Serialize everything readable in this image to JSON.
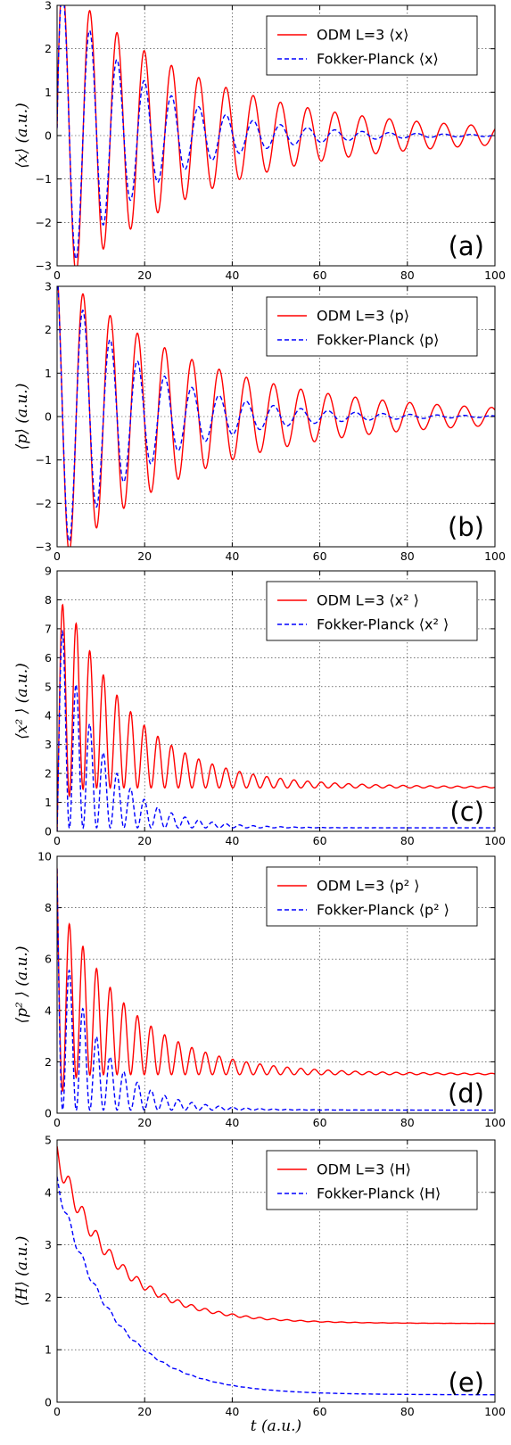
{
  "colors": {
    "odm": "#ff0000",
    "fp": "#0000ff"
  },
  "xlabel": "t  (a.u.)",
  "chart_data": [
    {
      "type": "line",
      "panel": "(a)",
      "ylabel": "⟨x⟩ (a.u.)",
      "xlim": [
        0,
        100
      ],
      "ylim": [
        -3,
        3
      ],
      "xticks": [
        "0",
        "20",
        "40",
        "60",
        "80",
        "100"
      ],
      "yticks": [
        "−3",
        "−2",
        "−1",
        "0",
        "1",
        "2",
        "3"
      ],
      "legend_loc": "top-right",
      "series": [
        {
          "name": "ODM L=3 ⟨x⟩",
          "style": "solid",
          "color": "#ff0000",
          "model": {
            "kind": "osc",
            "start": 0,
            "amplitude": 3.0,
            "decay": 0.032,
            "amp_floor": 0.06,
            "omega": 1.01,
            "phase": 0.3,
            "offset": 0
          }
        },
        {
          "name": "Fokker-Planck ⟨x⟩",
          "style": "dashed",
          "color": "#0000ff",
          "model": {
            "kind": "osc",
            "start": 0,
            "amplitude": 3.0,
            "decay": 0.052,
            "amp_floor": 0,
            "omega": 1.01,
            "phase": 0.3,
            "offset": 0
          }
        }
      ]
    },
    {
      "type": "line",
      "panel": "(b)",
      "ylabel": "⟨p⟩ (a.u.)",
      "xlim": [
        0,
        100
      ],
      "ylim": [
        -3,
        3
      ],
      "xticks": [
        "0",
        "20",
        "40",
        "60",
        "80",
        "100"
      ],
      "yticks": [
        "−3",
        "−2",
        "−1",
        "0",
        "1",
        "2",
        "3"
      ],
      "legend_loc": "top-right",
      "series": [
        {
          "name": "ODM L=3 ⟨p⟩",
          "style": "solid",
          "color": "#ff0000",
          "model": {
            "kind": "osc",
            "start": 3.0,
            "amplitude": 2.8,
            "decay": 0.032,
            "amp_floor": 0.06,
            "omega": 1.01,
            "phase": 1.87,
            "offset": 0
          }
        },
        {
          "name": "Fokker-Planck ⟨p⟩",
          "style": "dashed",
          "color": "#0000ff",
          "model": {
            "kind": "osc",
            "start": 3.0,
            "amplitude": 2.8,
            "decay": 0.052,
            "amp_floor": 0,
            "omega": 1.01,
            "phase": 1.87,
            "offset": 0
          }
        }
      ]
    },
    {
      "type": "line",
      "panel": "(c)",
      "ylabel": "⟨x² ⟩ (a.u.)",
      "xlim": [
        0,
        100
      ],
      "ylim": [
        0,
        9
      ],
      "xticks": [
        "0",
        "20",
        "40",
        "60",
        "80",
        "100"
      ],
      "yticks": [
        "0",
        "1",
        "2",
        "3",
        "4",
        "5",
        "6",
        "7",
        "8",
        "9"
      ],
      "legend_loc": "top-right",
      "series": [
        {
          "name": "ODM L=3 ⟨x² ⟩",
          "style": "solid",
          "color": "#ff0000",
          "model": {
            "kind": "sq",
            "start": 0,
            "amplitude": 7.6,
            "decay": 0.064,
            "amp_floor": 0.04,
            "omega": 1.01,
            "phase": 0.3,
            "offset": 1.5,
            "offset_rise": 0.2
          }
        },
        {
          "name": "Fokker-Planck ⟨x² ⟩",
          "style": "dashed",
          "color": "#0000ff",
          "model": {
            "kind": "sq",
            "start": 0,
            "amplitude": 7.8,
            "decay": 0.104,
            "amp_floor": 0,
            "omega": 1.01,
            "phase": 0.3,
            "offset": 0.12,
            "offset_rise": 0.2
          }
        }
      ]
    },
    {
      "type": "line",
      "panel": "(d)",
      "ylabel": "⟨p² ⟩ (a.u.)",
      "xlim": [
        0,
        100
      ],
      "ylim": [
        0,
        10
      ],
      "xticks": [
        "0",
        "20",
        "40",
        "60",
        "80",
        "100"
      ],
      "yticks": [
        "0",
        "2",
        "4",
        "6",
        "8",
        "10"
      ],
      "legend_loc": "top-right",
      "series": [
        {
          "name": "ODM L=3 ⟨p² ⟩",
          "style": "solid",
          "color": "#ff0000",
          "model": {
            "kind": "sq",
            "start": 9.5,
            "amplitude": 7.3,
            "decay": 0.064,
            "amp_floor": 0.04,
            "omega": 1.01,
            "phase": 1.87,
            "offset": 1.5,
            "offset_rise": 0.2
          }
        },
        {
          "name": "Fokker-Planck ⟨p² ⟩",
          "style": "dashed",
          "color": "#0000ff",
          "model": {
            "kind": "sq",
            "start": 9.5,
            "amplitude": 7.3,
            "decay": 0.104,
            "amp_floor": 0,
            "omega": 1.01,
            "phase": 1.87,
            "offset": 0.12,
            "offset_rise": 0.2
          }
        }
      ]
    },
    {
      "type": "line",
      "panel": "(e)",
      "ylabel": "⟨H⟩ (a.u.)",
      "xlim": [
        0,
        100
      ],
      "ylim": [
        0,
        5
      ],
      "xticks": [
        "0",
        "20",
        "40",
        "60",
        "80",
        "100"
      ],
      "yticks": [
        "0",
        "1",
        "2",
        "3",
        "4",
        "5"
      ],
      "legend_loc": "top-right",
      "series": [
        {
          "name": "ODM L=3 ⟨H⟩",
          "style": "solid",
          "color": "#ff0000",
          "model": {
            "kind": "energy",
            "start": 4.7,
            "offset": 1.5,
            "decay": 0.075,
            "ripple": 0.22,
            "ripple_decay": 0.055,
            "omega": 2.02,
            "phase": 0.6
          }
        },
        {
          "name": "Fokker-Planck ⟨H⟩",
          "style": "dashed",
          "color": "#0000ff",
          "model": {
            "kind": "energy",
            "start": 4.2,
            "offset": 0.14,
            "decay": 0.078,
            "ripple": 0.12,
            "ripple_decay": 0.09,
            "omega": 2.02,
            "phase": 0.6
          }
        }
      ]
    }
  ]
}
